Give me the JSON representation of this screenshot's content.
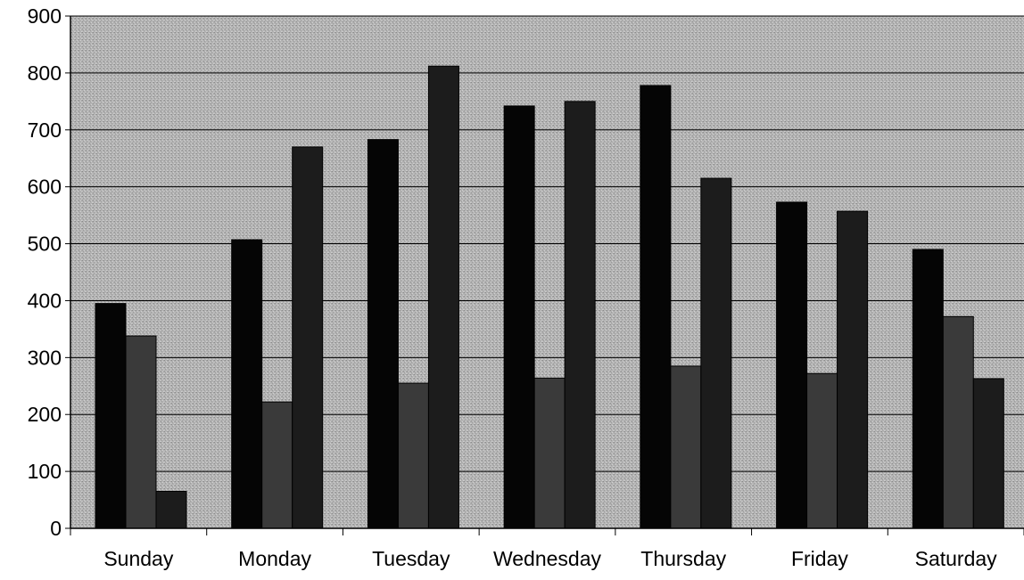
{
  "chart_data": {
    "type": "bar",
    "title": "",
    "xlabel": "",
    "ylabel": "",
    "categories": [
      "Sunday",
      "Monday",
      "Tuesday",
      "Wednesday",
      "Thursday",
      "Friday",
      "Saturday"
    ],
    "series": [
      {
        "color": "#050505",
        "values": [
          395,
          507,
          683,
          742,
          778,
          573,
          490
        ]
      },
      {
        "color": "#3a3a3a",
        "values": [
          338,
          222,
          255,
          264,
          285,
          272,
          372
        ]
      },
      {
        "color": "#1c1c1c",
        "values": [
          65,
          670,
          812,
          750,
          615,
          557,
          263
        ]
      }
    ],
    "ylim": [
      0,
      900
    ],
    "yticks": [
      0,
      100,
      200,
      300,
      400,
      500,
      600,
      700,
      800,
      900
    ],
    "grid": true,
    "legend": "none",
    "plot_background": "#b3b3b3"
  }
}
